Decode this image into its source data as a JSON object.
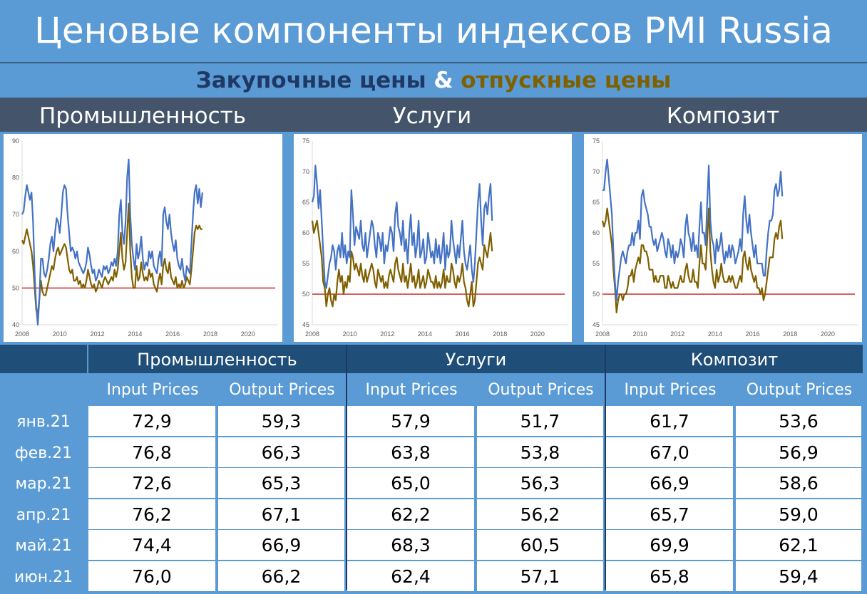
{
  "title": "Ценовые компоненты индексов PMI Russia",
  "subtitle": {
    "part1": "Закупочные цены",
    "amp": "&",
    "part2": "отпускные цены"
  },
  "sections": [
    "Промышленность",
    "Услуги",
    "Композит"
  ],
  "colors": {
    "input": "#4472c4",
    "output": "#7f6000",
    "threshold": "#c00000",
    "header_dark": "#1f4e79",
    "background": "#5b9bd5"
  },
  "chart_data": [
    {
      "type": "line",
      "title": "Промышленность",
      "x_ticks": [
        "2008",
        "2010",
        "2012",
        "2014",
        "2016",
        "2018",
        "2020"
      ],
      "ylim": [
        40,
        90
      ],
      "y_ticks": [
        "40",
        "50",
        "60",
        "70",
        "80",
        "90"
      ],
      "threshold": 50,
      "x_start": 2008.0,
      "x_step": 0.0833,
      "series": [
        {
          "values": [
            70,
            71,
            75,
            78,
            76,
            74,
            76,
            68,
            54,
            45,
            40,
            47,
            58,
            58,
            54,
            53,
            55,
            58,
            62,
            64,
            60,
            65,
            69,
            68,
            65,
            70,
            76,
            78,
            77,
            70,
            65,
            60,
            61,
            60,
            58,
            60,
            57,
            56,
            55,
            54,
            55,
            57,
            61,
            59,
            56,
            54,
            55,
            52,
            53,
            55,
            54,
            53,
            56,
            55,
            56,
            54,
            55,
            57,
            56,
            58,
            56,
            60,
            70,
            74,
            65,
            62,
            68,
            80,
            85,
            70,
            62,
            58,
            55,
            62,
            58,
            60,
            64,
            58,
            55,
            57,
            56,
            60,
            58,
            60,
            56,
            55,
            54,
            58,
            60,
            56,
            70,
            72,
            68,
            66,
            70,
            65,
            62,
            60,
            63,
            58,
            56,
            55,
            58,
            54,
            52,
            56,
            55,
            54,
            62,
            70,
            76,
            78,
            73,
            77,
            72,
            76
          ]
        },
        {
          "values": [
            63,
            62,
            64,
            66,
            64,
            62,
            60,
            56,
            50,
            44,
            43,
            47,
            52,
            49,
            48,
            48,
            50,
            52,
            54,
            56,
            55,
            58,
            60,
            61,
            59,
            60,
            61,
            62,
            61,
            58,
            55,
            54,
            55,
            52,
            52,
            53,
            51,
            52,
            50,
            51,
            50,
            52,
            55,
            53,
            51,
            50,
            51,
            49,
            50,
            52,
            51,
            50,
            52,
            53,
            52,
            51,
            52,
            53,
            52,
            55,
            53,
            55,
            60,
            65,
            58,
            55,
            57,
            65,
            73,
            60,
            53,
            50,
            50,
            56,
            52,
            53,
            57,
            54,
            52,
            53,
            52,
            55,
            53,
            54,
            51,
            50,
            49,
            52,
            54,
            51,
            56,
            58,
            55,
            54,
            57,
            53,
            52,
            51,
            53,
            50,
            51,
            50,
            52,
            50,
            51,
            53,
            52,
            51,
            55,
            60,
            65,
            67,
            66,
            67,
            66,
            66
          ]
        }
      ]
    },
    {
      "type": "line",
      "title": "Услуги",
      "x_ticks": [
        "2008",
        "2010",
        "2012",
        "2014",
        "2016",
        "2018",
        "2020"
      ],
      "ylim": [
        45,
        75
      ],
      "y_ticks": [
        "45",
        "50",
        "55",
        "60",
        "65",
        "70",
        "75"
      ],
      "threshold": 50,
      "x_start": 2008.0,
      "x_step": 0.0833,
      "series": [
        {
          "values": [
            65,
            66,
            71,
            68,
            64,
            67,
            62,
            57,
            52,
            51,
            53,
            55,
            56,
            58,
            57,
            54,
            57,
            58,
            56,
            60,
            56,
            58,
            55,
            57,
            56,
            67,
            63,
            58,
            61,
            60,
            59,
            62,
            58,
            57,
            60,
            56,
            58,
            60,
            62,
            61,
            58,
            56,
            60,
            59,
            57,
            60,
            55,
            58,
            57,
            59,
            61,
            60,
            57,
            63,
            65,
            61,
            60,
            58,
            62,
            57,
            59,
            55,
            60,
            63,
            58,
            60,
            56,
            58,
            62,
            56,
            57,
            59,
            55,
            56,
            60,
            58,
            56,
            57,
            55,
            59,
            56,
            58,
            55,
            57,
            60,
            54,
            58,
            56,
            57,
            62,
            59,
            57,
            55,
            58,
            56,
            59,
            62,
            57,
            55,
            54,
            56,
            58,
            54,
            52,
            55,
            60,
            65,
            68,
            62,
            58,
            64,
            65,
            63,
            66,
            68,
            62
          ]
        },
        {
          "values": [
            62,
            60,
            61,
            62,
            60,
            58,
            56,
            52,
            51,
            48,
            50,
            51,
            49,
            48,
            50,
            49,
            52,
            54,
            52,
            53,
            50,
            52,
            51,
            53,
            52,
            57,
            56,
            54,
            55,
            54,
            53,
            55,
            53,
            52,
            54,
            52,
            53,
            54,
            55,
            54,
            52,
            51,
            54,
            53,
            52,
            53,
            51,
            52,
            51,
            53,
            54,
            53,
            52,
            55,
            56,
            54,
            53,
            52,
            55,
            52,
            53,
            51,
            53,
            55,
            52,
            53,
            51,
            52,
            54,
            51,
            52,
            53,
            51,
            52,
            54,
            53,
            52,
            52,
            51,
            53,
            51,
            52,
            51,
            52,
            54,
            51,
            53,
            52,
            52,
            55,
            54,
            52,
            51,
            53,
            52,
            53,
            55,
            52,
            51,
            49,
            48,
            50,
            52,
            48,
            49,
            52,
            55,
            56,
            55,
            54,
            58,
            57,
            56,
            58,
            60,
            57
          ]
        }
      ]
    },
    {
      "type": "line",
      "title": "Композит",
      "x_ticks": [
        "2008",
        "2010",
        "2012",
        "2014",
        "2016",
        "2018",
        "2020"
      ],
      "ylim": [
        45,
        75
      ],
      "y_ticks": [
        "45",
        "50",
        "55",
        "60",
        "65",
        "70",
        "75"
      ],
      "threshold": 50,
      "x_start": 2008.0,
      "x_step": 0.0833,
      "series": [
        {
          "values": [
            67,
            67,
            70,
            72,
            69,
            66,
            63,
            57,
            52,
            49,
            52,
            54,
            56,
            57,
            56,
            55,
            57,
            58,
            58,
            60,
            58,
            60,
            60,
            62,
            59,
            66,
            67,
            65,
            64,
            63,
            61,
            61,
            59,
            58,
            59,
            57,
            58,
            59,
            60,
            59,
            57,
            56,
            59,
            58,
            56,
            58,
            55,
            57,
            56,
            57,
            59,
            58,
            56,
            61,
            63,
            60,
            59,
            57,
            60,
            57,
            58,
            56,
            61,
            65,
            60,
            60,
            58,
            65,
            71,
            62,
            59,
            58,
            55,
            59,
            57,
            58,
            60,
            57,
            55,
            57,
            56,
            58,
            56,
            58,
            57,
            55,
            56,
            57,
            59,
            57,
            63,
            66,
            62,
            60,
            63,
            60,
            58,
            56,
            58,
            55,
            55,
            55,
            55,
            53,
            53,
            57,
            60,
            62,
            62,
            63,
            67,
            68,
            66,
            67,
            70,
            66
          ]
        },
        {
          "values": [
            62,
            61,
            62,
            64,
            62,
            60,
            58,
            54,
            51,
            47,
            49,
            50,
            50,
            49,
            50,
            50,
            51,
            53,
            53,
            54,
            52,
            54,
            55,
            56,
            55,
            58,
            58,
            57,
            57,
            56,
            54,
            54,
            54,
            52,
            53,
            52,
            52,
            53,
            53,
            53,
            51,
            51,
            53,
            52,
            51,
            52,
            51,
            51,
            51,
            52,
            53,
            52,
            52,
            54,
            55,
            53,
            52,
            52,
            54,
            52,
            52,
            51,
            55,
            58,
            55,
            55,
            54,
            59,
            64,
            57,
            54,
            52,
            51,
            54,
            52,
            53,
            55,
            53,
            52,
            52,
            52,
            53,
            52,
            53,
            52,
            51,
            51,
            52,
            53,
            52,
            56,
            57,
            55,
            54,
            56,
            54,
            53,
            52,
            53,
            51,
            51,
            50,
            51,
            49,
            50,
            52,
            54,
            56,
            56,
            56,
            59,
            60,
            59,
            61,
            62,
            59
          ]
        }
      ]
    }
  ],
  "table": {
    "groups": [
      "Промышленность",
      "Услуги",
      "Композит"
    ],
    "subheaders": [
      "Input Prices",
      "Output Prices",
      "Input Prices",
      "Output Prices",
      "Input Prices",
      "Output Prices"
    ],
    "rows": [
      {
        "label": "янв.21",
        "values": [
          "72,9",
          "59,3",
          "57,9",
          "51,7",
          "61,7",
          "53,6"
        ]
      },
      {
        "label": "фев.21",
        "values": [
          "76,8",
          "66,3",
          "63,8",
          "53,8",
          "67,0",
          "56,9"
        ]
      },
      {
        "label": "мар.21",
        "values": [
          "72,6",
          "65,3",
          "65,0",
          "56,3",
          "66,9",
          "58,6"
        ]
      },
      {
        "label": "апр.21",
        "values": [
          "76,2",
          "67,1",
          "62,2",
          "56,2",
          "65,7",
          "59,0"
        ]
      },
      {
        "label": "май.21",
        "values": [
          "74,4",
          "66,9",
          "68,3",
          "60,5",
          "69,9",
          "62,1"
        ]
      },
      {
        "label": "июн.21",
        "values": [
          "76,0",
          "66,2",
          "62,4",
          "57,1",
          "65,8",
          "59,4"
        ]
      }
    ]
  }
}
